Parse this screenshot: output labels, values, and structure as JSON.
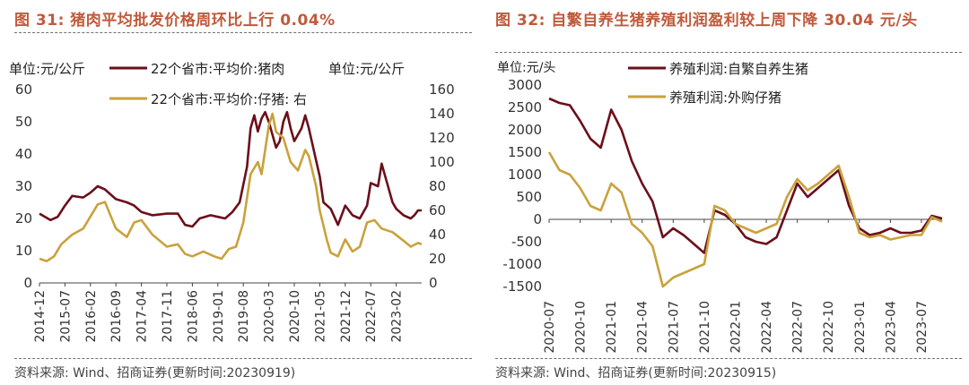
{
  "left": {
    "title": "图 31:  猪肉平均批发价格周环比上行 0.04%",
    "source": "资料来源:  Wind、招商证券(更新时间:20230919)",
    "unit_left": "单位:元/公斤",
    "unit_right": "单位:元/公斤"
  },
  "right": {
    "title": "图 32:  自繁自养生猪养殖利润盈利较上周下降 30.04 元/头",
    "source": "资料来源:  Wind、招商证券(更新时间:20230915)",
    "unit": "单位:元/头"
  },
  "colors": {
    "accent": "#C05A3C",
    "maroon": "#6B0F1A",
    "gold": "#C9A23C"
  },
  "chart_data": [
    {
      "type": "line",
      "title": "猪肉平均批发价格周环比上行 0.04%",
      "x_type": "date",
      "x_ticks": [
        "2014-12",
        "2015-07",
        "2016-02",
        "2016-09",
        "2017-04",
        "2017-11",
        "2018-06",
        "2019-01",
        "2019-08",
        "2020-03",
        "2020-10",
        "2021-05",
        "2021-12",
        "2022-07",
        "2023-02"
      ],
      "xlim": [
        "2014-12",
        "2023-09"
      ],
      "y_left": {
        "ylim": [
          0,
          60
        ],
        "ticks": [
          0,
          10,
          20,
          30,
          40,
          50,
          60
        ]
      },
      "y_right": {
        "ylim": [
          0,
          160
        ],
        "ticks": [
          0,
          20,
          40,
          60,
          80,
          100,
          120,
          140,
          160
        ]
      },
      "legend_placement": "top",
      "series": [
        {
          "name": "22个省市:平均价:猪肉",
          "axis": "left",
          "color": "#6B0F1A",
          "points": [
            [
              "2014-12",
              21.5
            ],
            [
              "2015-03",
              19.5
            ],
            [
              "2015-05",
              20.5
            ],
            [
              "2015-07",
              24
            ],
            [
              "2015-09",
              27
            ],
            [
              "2015-12",
              26.5
            ],
            [
              "2016-02",
              28
            ],
            [
              "2016-04",
              30
            ],
            [
              "2016-06",
              29
            ],
            [
              "2016-09",
              26
            ],
            [
              "2016-12",
              25
            ],
            [
              "2017-02",
              24
            ],
            [
              "2017-04",
              22
            ],
            [
              "2017-07",
              21
            ],
            [
              "2017-11",
              21.5
            ],
            [
              "2018-02",
              21.5
            ],
            [
              "2018-04",
              18
            ],
            [
              "2018-06",
              17.5
            ],
            [
              "2018-08",
              20
            ],
            [
              "2018-11",
              21
            ],
            [
              "2019-01",
              20.5
            ],
            [
              "2019-03",
              20
            ],
            [
              "2019-05",
              22
            ],
            [
              "2019-07",
              25
            ],
            [
              "2019-09",
              36
            ],
            [
              "2019-10",
              48
            ],
            [
              "2019-11",
              52
            ],
            [
              "2019-12",
              47
            ],
            [
              "2020-01",
              51
            ],
            [
              "2020-02",
              53
            ],
            [
              "2020-03",
              50
            ],
            [
              "2020-05",
              42
            ],
            [
              "2020-06",
              44
            ],
            [
              "2020-07",
              50
            ],
            [
              "2020-08",
              53
            ],
            [
              "2020-09",
              48
            ],
            [
              "2020-10",
              44
            ],
            [
              "2020-12",
              48
            ],
            [
              "2021-01",
              52
            ],
            [
              "2021-02",
              48
            ],
            [
              "2021-04",
              38
            ],
            [
              "2021-05",
              33
            ],
            [
              "2021-06",
              25
            ],
            [
              "2021-08",
              23
            ],
            [
              "2021-10",
              18
            ],
            [
              "2021-12",
              24
            ],
            [
              "2022-02",
              21
            ],
            [
              "2022-04",
              20
            ],
            [
              "2022-06",
              24
            ],
            [
              "2022-07",
              31
            ],
            [
              "2022-09",
              30
            ],
            [
              "2022-10",
              37
            ],
            [
              "2022-11",
              33
            ],
            [
              "2023-01",
              25
            ],
            [
              "2023-02",
              23
            ],
            [
              "2023-04",
              21
            ],
            [
              "2023-06",
              20
            ],
            [
              "2023-07",
              21
            ],
            [
              "2023-08",
              22.5
            ],
            [
              "2023-09",
              22.5
            ]
          ]
        },
        {
          "name": "22个省市:平均价:仔猪:  右",
          "axis": "right",
          "color": "#C9A23C",
          "points": [
            [
              "2014-12",
              20
            ],
            [
              "2015-02",
              18
            ],
            [
              "2015-04",
              22
            ],
            [
              "2015-06",
              32
            ],
            [
              "2015-09",
              40
            ],
            [
              "2015-12",
              45
            ],
            [
              "2016-02",
              55
            ],
            [
              "2016-04",
              65
            ],
            [
              "2016-06",
              67
            ],
            [
              "2016-09",
              45
            ],
            [
              "2016-12",
              38
            ],
            [
              "2017-02",
              50
            ],
            [
              "2017-04",
              52
            ],
            [
              "2017-07",
              40
            ],
            [
              "2017-11",
              30
            ],
            [
              "2018-02",
              32
            ],
            [
              "2018-04",
              24
            ],
            [
              "2018-06",
              22
            ],
            [
              "2018-09",
              26
            ],
            [
              "2018-12",
              22
            ],
            [
              "2019-02",
              20
            ],
            [
              "2019-04",
              28
            ],
            [
              "2019-06",
              30
            ],
            [
              "2019-08",
              50
            ],
            [
              "2019-10",
              90
            ],
            [
              "2019-12",
              100
            ],
            [
              "2020-01",
              90
            ],
            [
              "2020-03",
              130
            ],
            [
              "2020-04",
              140
            ],
            [
              "2020-05",
              125
            ],
            [
              "2020-07",
              120
            ],
            [
              "2020-09",
              100
            ],
            [
              "2020-11",
              93
            ],
            [
              "2021-01",
              110
            ],
            [
              "2021-02",
              105
            ],
            [
              "2021-04",
              80
            ],
            [
              "2021-05",
              60
            ],
            [
              "2021-07",
              35
            ],
            [
              "2021-08",
              25
            ],
            [
              "2021-10",
              22
            ],
            [
              "2021-12",
              36
            ],
            [
              "2022-02",
              26
            ],
            [
              "2022-04",
              30
            ],
            [
              "2022-06",
              50
            ],
            [
              "2022-08",
              52
            ],
            [
              "2022-10",
              45
            ],
            [
              "2023-01",
              42
            ],
            [
              "2023-04",
              35
            ],
            [
              "2023-06",
              30
            ],
            [
              "2023-08",
              33
            ],
            [
              "2023-09",
              32
            ]
          ]
        }
      ]
    },
    {
      "type": "line",
      "title": "自繁自养生猪养殖利润盈利较上周下降 30.04 元/头",
      "x_type": "date",
      "x_ticks": [
        "2020-07",
        "2020-10",
        "2021-01",
        "2021-04",
        "2021-07",
        "2021-10",
        "2022-01",
        "2022-04",
        "2022-07",
        "2022-10",
        "2023-01",
        "2023-04",
        "2023-07"
      ],
      "xlim": [
        "2020-07",
        "2023-09"
      ],
      "y": {
        "ylim": [
          -1500,
          3000
        ],
        "ticks": [
          -1500,
          -1000,
          -500,
          0,
          500,
          1000,
          1500,
          2000,
          2500,
          3000
        ]
      },
      "legend_placement": "top",
      "series": [
        {
          "name": "养殖利润:自繁自养生猪",
          "color": "#6B0F1A",
          "points": [
            [
              "2020-07",
              2700
            ],
            [
              "2020-08",
              2600
            ],
            [
              "2020-09",
              2550
            ],
            [
              "2020-10",
              2200
            ],
            [
              "2020-11",
              1800
            ],
            [
              "2020-12",
              1600
            ],
            [
              "2021-01",
              2450
            ],
            [
              "2021-02",
              2000
            ],
            [
              "2021-03",
              1300
            ],
            [
              "2021-04",
              800
            ],
            [
              "2021-05",
              400
            ],
            [
              "2021-06",
              -400
            ],
            [
              "2021-07",
              -200
            ],
            [
              "2021-08",
              -350
            ],
            [
              "2021-09",
              -550
            ],
            [
              "2021-10",
              -750
            ],
            [
              "2021-11",
              200
            ],
            [
              "2021-12",
              100
            ],
            [
              "2022-01",
              -100
            ],
            [
              "2022-02",
              -400
            ],
            [
              "2022-03",
              -500
            ],
            [
              "2022-04",
              -550
            ],
            [
              "2022-05",
              -400
            ],
            [
              "2022-06",
              200
            ],
            [
              "2022-07",
              800
            ],
            [
              "2022-08",
              500
            ],
            [
              "2022-09",
              700
            ],
            [
              "2022-10",
              900
            ],
            [
              "2022-11",
              1100
            ],
            [
              "2022-12",
              300
            ],
            [
              "2023-01",
              -200
            ],
            [
              "2023-02",
              -350
            ],
            [
              "2023-03",
              -300
            ],
            [
              "2023-04",
              -200
            ],
            [
              "2023-05",
              -300
            ],
            [
              "2023-06",
              -300
            ],
            [
              "2023-07",
              -250
            ],
            [
              "2023-08",
              80
            ],
            [
              "2023-09",
              20
            ]
          ]
        },
        {
          "name": "养殖利润:外购仔猪",
          "color": "#C9A23C",
          "points": [
            [
              "2020-07",
              1500
            ],
            [
              "2020-08",
              1100
            ],
            [
              "2020-09",
              1000
            ],
            [
              "2020-10",
              700
            ],
            [
              "2020-11",
              300
            ],
            [
              "2020-12",
              200
            ],
            [
              "2021-01",
              800
            ],
            [
              "2021-02",
              600
            ],
            [
              "2021-03",
              -100
            ],
            [
              "2021-04",
              -300
            ],
            [
              "2021-05",
              -600
            ],
            [
              "2021-06",
              -1500
            ],
            [
              "2021-07",
              -1300
            ],
            [
              "2021-08",
              -1200
            ],
            [
              "2021-09",
              -1100
            ],
            [
              "2021-10",
              -1000
            ],
            [
              "2021-11",
              300
            ],
            [
              "2021-12",
              200
            ],
            [
              "2022-01",
              -100
            ],
            [
              "2022-02",
              -200
            ],
            [
              "2022-03",
              -300
            ],
            [
              "2022-04",
              -200
            ],
            [
              "2022-05",
              -100
            ],
            [
              "2022-06",
              500
            ],
            [
              "2022-07",
              900
            ],
            [
              "2022-08",
              650
            ],
            [
              "2022-09",
              800
            ],
            [
              "2022-10",
              1000
            ],
            [
              "2022-11",
              1200
            ],
            [
              "2022-12",
              500
            ],
            [
              "2023-01",
              -300
            ],
            [
              "2023-02",
              -400
            ],
            [
              "2023-03",
              -350
            ],
            [
              "2023-04",
              -450
            ],
            [
              "2023-05",
              -400
            ],
            [
              "2023-06",
              -350
            ],
            [
              "2023-07",
              -350
            ],
            [
              "2023-08",
              50
            ],
            [
              "2023-09",
              -50
            ]
          ]
        }
      ]
    }
  ]
}
